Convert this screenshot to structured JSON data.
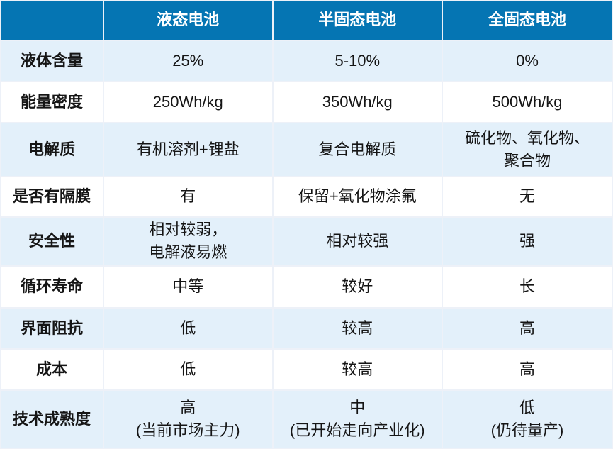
{
  "colors": {
    "header_bg": "#0575b3",
    "header_text": "#ffffff",
    "row_alt_bg": "#e3f0fa",
    "row_bg": "#ffffff",
    "grid_gap": "#edf1f8",
    "body_text": "#151515"
  },
  "chart_data": {
    "type": "table",
    "header": {
      "corner": "",
      "columns": [
        "液态电池",
        "半固态电池",
        "全固态电池"
      ]
    },
    "rows": [
      {
        "label": "液体含量",
        "values": [
          [
            "25%"
          ],
          [
            "5-10%"
          ],
          [
            "0%"
          ]
        ]
      },
      {
        "label": "能量密度",
        "values": [
          [
            "250Wh/kg"
          ],
          [
            "350Wh/kg"
          ],
          [
            "500Wh/kg"
          ]
        ]
      },
      {
        "label": "电解质",
        "values": [
          [
            "有机溶剂+锂盐"
          ],
          [
            "复合电解质"
          ],
          [
            "硫化物、氧化物、",
            "聚合物"
          ]
        ]
      },
      {
        "label": "是否有隔膜",
        "values": [
          [
            "有"
          ],
          [
            "保留+氧化物涂氟"
          ],
          [
            "无"
          ]
        ]
      },
      {
        "label": "安全性",
        "values": [
          [
            "相对较弱，",
            "电解液易燃"
          ],
          [
            "相对较强"
          ],
          [
            "强"
          ]
        ]
      },
      {
        "label": "循环寿命",
        "values": [
          [
            "中等"
          ],
          [
            "较好"
          ],
          [
            "长"
          ]
        ]
      },
      {
        "label": "界面阻抗",
        "values": [
          [
            "低"
          ],
          [
            "较高"
          ],
          [
            "高"
          ]
        ]
      },
      {
        "label": "成本",
        "values": [
          [
            "低"
          ],
          [
            "较高"
          ],
          [
            "高"
          ]
        ]
      },
      {
        "label": "技术成熟度",
        "values": [
          [
            "高",
            "(当前市场主力)"
          ],
          [
            "中",
            "(已开始走向产业化)"
          ],
          [
            "低",
            "(仍待量产)"
          ]
        ]
      }
    ]
  }
}
